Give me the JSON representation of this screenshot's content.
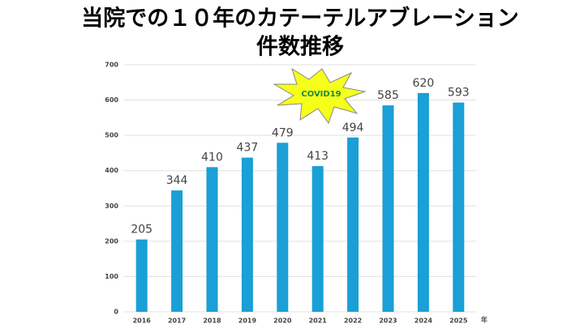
{
  "chart_data": {
    "type": "bar",
    "title": [
      "当院での１０年のカテーテルアブレーション",
      "件数推移"
    ],
    "categories": [
      "2016",
      "2017",
      "2018",
      "2019",
      "2020",
      "2021",
      "2022",
      "2023",
      "2024",
      "2025"
    ],
    "values": [
      205,
      344,
      410,
      437,
      479,
      413,
      494,
      585,
      620,
      593
    ],
    "color": "#1a9fd6",
    "ylim": [
      0,
      700
    ],
    "yticks": [
      0,
      100,
      200,
      300,
      400,
      500,
      600,
      700
    ],
    "grid": true,
    "x_label": "年",
    "annotation": "COVID19"
  }
}
